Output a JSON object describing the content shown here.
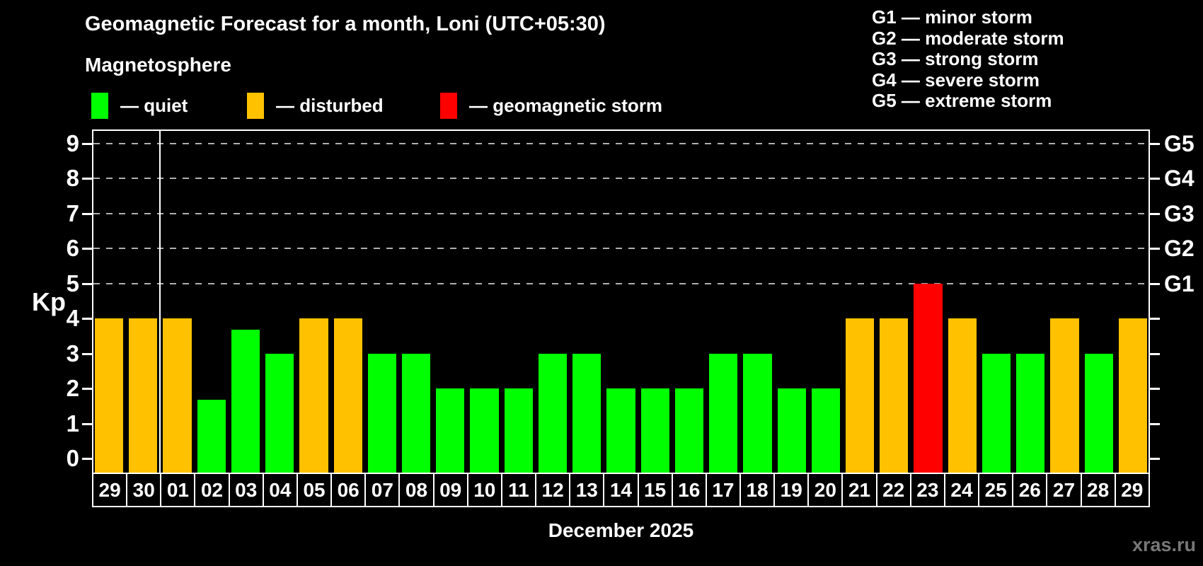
{
  "header": {
    "title": "Geomagnetic Forecast for a month, Loni (UTC+05:30)",
    "subtitle": "Magnetosphere"
  },
  "legend": {
    "items": [
      {
        "name": "quiet",
        "label": "— quiet",
        "color": "#00ff00"
      },
      {
        "name": "disturbed",
        "label": "— disturbed",
        "color": "#ffc100"
      },
      {
        "name": "storm",
        "label": "— geomagnetic storm",
        "color": "#ff0000"
      }
    ]
  },
  "g_scale_legend": [
    "G1 — minor storm",
    "G2 — moderate storm",
    "G3 — strong storm",
    "G4 — severe storm",
    "G5 — extreme storm"
  ],
  "chart_data": {
    "type": "bar",
    "title": "Geomagnetic Forecast for a month, Loni (UTC+05:30)",
    "xlabel": "December 2025",
    "ylabel": "Kp",
    "ylim": [
      -0.4,
      9.4
    ],
    "y_ticks": [
      0,
      1,
      2,
      3,
      4,
      5,
      6,
      7,
      8,
      9
    ],
    "gridlines_at": [
      5,
      6,
      7,
      8,
      9
    ],
    "grid": true,
    "legend_position": "top-left",
    "right_axis_labels": [
      {
        "kp": 5,
        "label": "G1"
      },
      {
        "kp": 6,
        "label": "G2"
      },
      {
        "kp": 7,
        "label": "G3"
      },
      {
        "kp": 8,
        "label": "G4"
      },
      {
        "kp": 9,
        "label": "G5"
      }
    ],
    "month_boundary_index": 2,
    "categories": [
      "29",
      "30",
      "01",
      "02",
      "03",
      "04",
      "05",
      "06",
      "07",
      "08",
      "09",
      "10",
      "11",
      "12",
      "13",
      "14",
      "15",
      "16",
      "17",
      "18",
      "19",
      "20",
      "21",
      "22",
      "23",
      "24",
      "25",
      "26",
      "27",
      "28",
      "29"
    ],
    "values": [
      4,
      4,
      4,
      1.67,
      3.67,
      3,
      4,
      4,
      3,
      3,
      2,
      2,
      2,
      3,
      3,
      2,
      2,
      2,
      3,
      3,
      2,
      2,
      4,
      4,
      5,
      4,
      3,
      3,
      4,
      3,
      4
    ],
    "statuses": [
      "disturbed",
      "disturbed",
      "disturbed",
      "quiet",
      "quiet",
      "quiet",
      "disturbed",
      "disturbed",
      "quiet",
      "quiet",
      "quiet",
      "quiet",
      "quiet",
      "quiet",
      "quiet",
      "quiet",
      "quiet",
      "quiet",
      "quiet",
      "quiet",
      "quiet",
      "quiet",
      "disturbed",
      "disturbed",
      "storm",
      "disturbed",
      "quiet",
      "quiet",
      "disturbed",
      "quiet",
      "disturbed"
    ]
  },
  "footer": {
    "x_axis_title": "December 2025",
    "watermark": "xras.ru"
  },
  "colors": {
    "background": "#000000",
    "quiet": "#00ff00",
    "disturbed": "#ffc100",
    "storm": "#ff0000",
    "axis": "#ffffff",
    "grid": "#b0b0b0",
    "watermark": "#787878"
  }
}
